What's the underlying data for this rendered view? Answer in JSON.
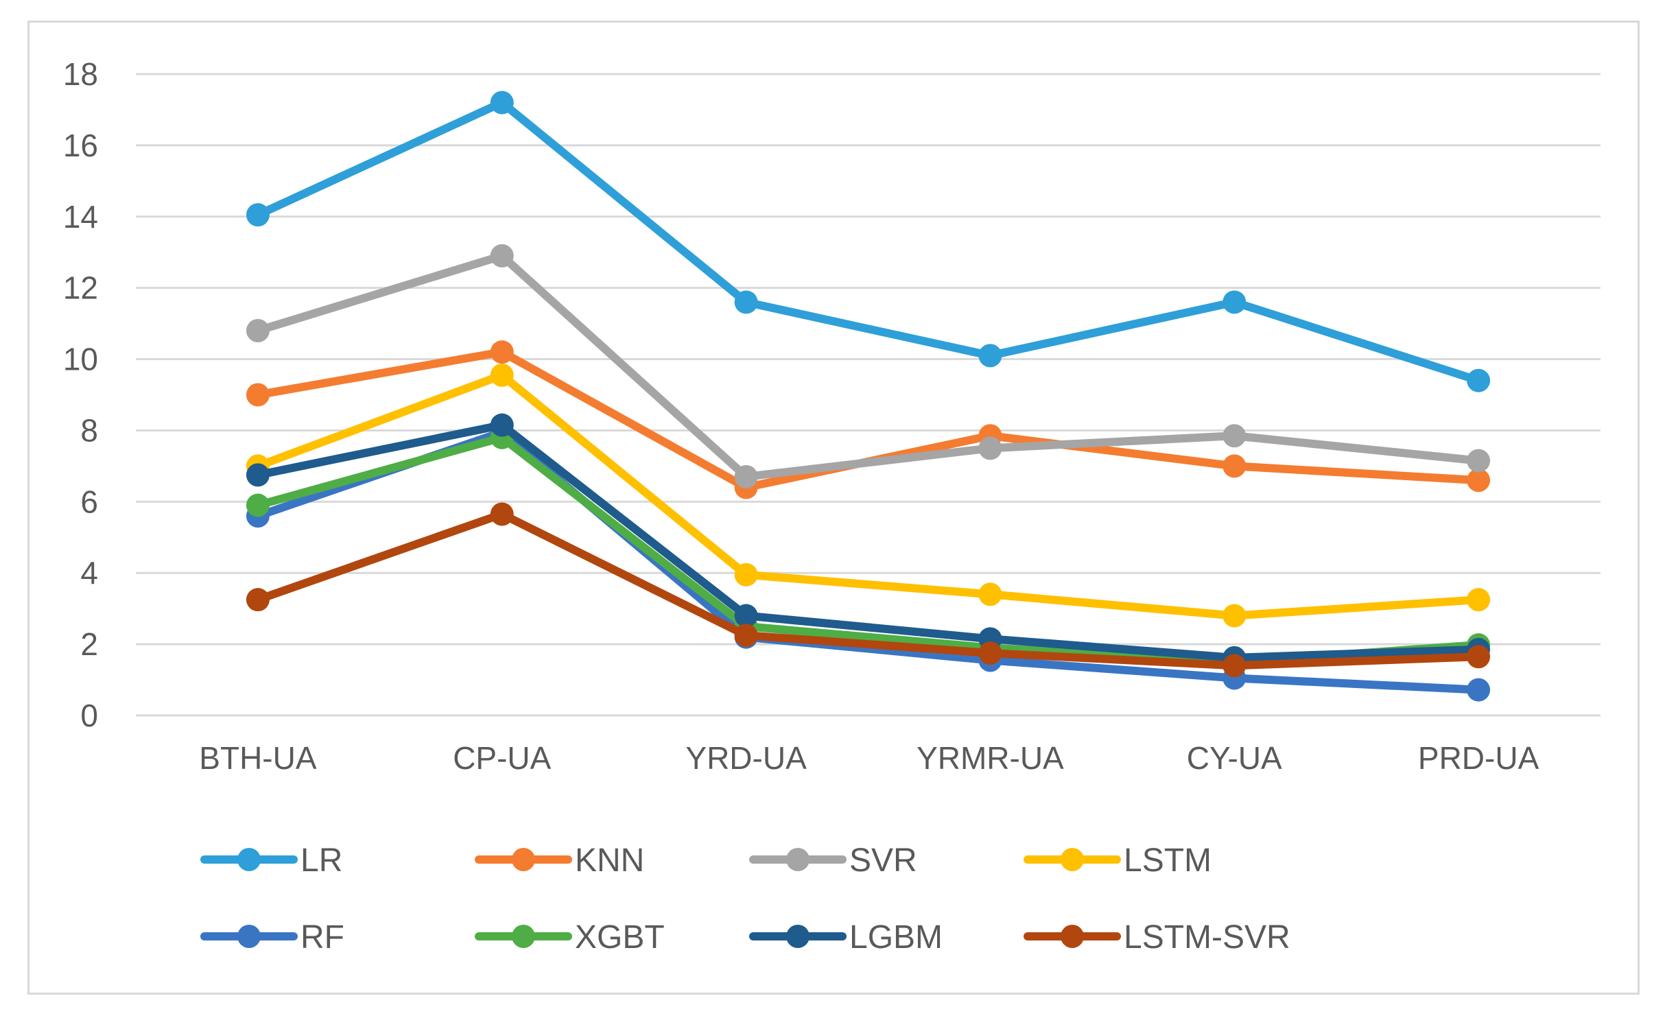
{
  "chart_data": {
    "type": "line",
    "categories": [
      "BTH-UA",
      "CP-UA",
      "YRD-UA",
      "YRMR-UA",
      "CY-UA",
      "PRD-UA"
    ],
    "ylim": [
      0,
      18
    ],
    "yticks": [
      "0",
      "2",
      "4",
      "6",
      "8",
      "10",
      "12",
      "14",
      "16",
      "18"
    ],
    "grid": true,
    "legend_position": "bottom",
    "series": [
      {
        "name": "LR",
        "color": "#2e9fd8",
        "values": [
          14.05,
          17.2,
          11.6,
          10.1,
          11.6,
          9.4
        ]
      },
      {
        "name": "KNN",
        "color": "#f47c30",
        "values": [
          9.0,
          10.2,
          6.4,
          7.85,
          7.0,
          6.6
        ]
      },
      {
        "name": "SVR",
        "color": "#a5a5a5",
        "values": [
          10.8,
          12.9,
          6.7,
          7.5,
          7.85,
          7.15
        ]
      },
      {
        "name": "LSTM",
        "color": "#ffc000",
        "values": [
          7.0,
          9.55,
          3.95,
          3.4,
          2.8,
          3.25
        ]
      },
      {
        "name": "RF",
        "color": "#3a75c4",
        "values": [
          5.6,
          7.95,
          2.2,
          1.55,
          1.05,
          0.72
        ]
      },
      {
        "name": "XGBT",
        "color": "#4fad45",
        "values": [
          5.9,
          7.8,
          2.5,
          1.9,
          1.5,
          1.98
        ]
      },
      {
        "name": "LGBM",
        "color": "#1f5b8c",
        "values": [
          6.75,
          8.15,
          2.8,
          2.15,
          1.62,
          1.85
        ]
      },
      {
        "name": "LSTM-SVR",
        "color": "#b1470e",
        "values": [
          3.25,
          5.65,
          2.25,
          1.75,
          1.4,
          1.65
        ]
      }
    ]
  }
}
